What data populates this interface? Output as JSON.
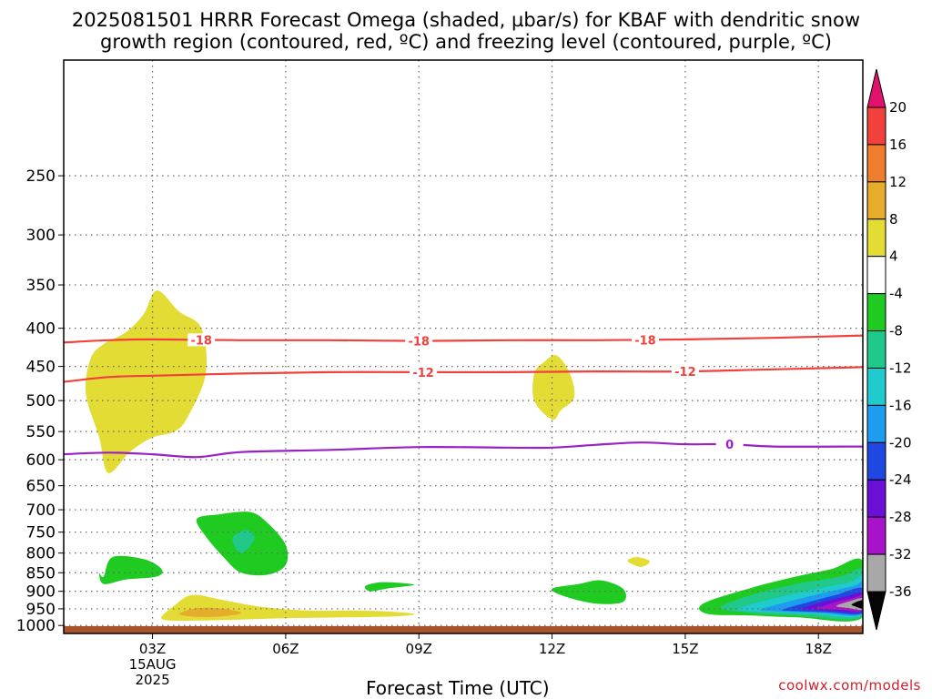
{
  "page": {
    "title_line1": "2025081501 HRRR Forecast Omega (shaded, µbar/s) for KBAF with dendritic snow",
    "title_line2": "growth region (contoured, red, ºC) and freezing level (contoured, purple, ºC)",
    "credit": "coolwx.com/models"
  },
  "chart_data": {
    "type": "time-height contour",
    "xlabel": "Forecast Time (UTC)",
    "ylabel": "",
    "x_range": [
      1,
      19
    ],
    "y_range_hPa": [
      1025,
      175
    ],
    "y_scale": "log-pressure",
    "grid": true,
    "x_ticks": [
      {
        "value": 3,
        "label": "03Z",
        "sub1": "15AUG",
        "sub2": "2025"
      },
      {
        "value": 6,
        "label": "06Z"
      },
      {
        "value": 9,
        "label": "09Z"
      },
      {
        "value": 12,
        "label": "12Z"
      },
      {
        "value": 15,
        "label": "15Z"
      },
      {
        "value": 18,
        "label": "18Z"
      }
    ],
    "y_ticks": [
      250,
      300,
      350,
      400,
      450,
      500,
      550,
      600,
      650,
      700,
      750,
      800,
      850,
      900,
      950,
      1000
    ],
    "contours": [
      {
        "label": "-18",
        "color": "#f2403c",
        "x": [
          1,
          2,
          3,
          5,
          7,
          9,
          11,
          13,
          15,
          17,
          19
        ],
        "p": [
          418,
          415,
          414,
          415,
          415,
          416,
          415,
          415,
          414,
          412,
          409
        ],
        "label_at": [
          4.1,
          9,
          14.1
        ]
      },
      {
        "label": "-12",
        "color": "#f2403c",
        "x": [
          1,
          2,
          3,
          5,
          7,
          9,
          11,
          13,
          15,
          17,
          19
        ],
        "p": [
          472,
          465,
          463,
          460,
          458,
          458,
          458,
          457,
          457,
          454,
          451
        ],
        "label_at": [
          9.1,
          15
        ]
      },
      {
        "label": "0",
        "color": "#9a20c8",
        "x": [
          1,
          2,
          3,
          4,
          5,
          7,
          9,
          11,
          12,
          13,
          14,
          15,
          16,
          17,
          19
        ],
        "p": [
          590,
          587,
          590,
          595,
          586,
          582,
          577,
          578,
          578,
          573,
          569,
          572,
          572,
          576,
          576
        ],
        "label_at": [
          16
        ]
      }
    ],
    "shaded_regions": [
      {
        "level": "4",
        "color": "#e3dc35",
        "x": [
          2.0,
          1.8,
          1.5,
          1.6,
          1.9,
          2.4,
          2.8,
          3.1,
          3.6,
          4.1,
          4.2,
          3.8,
          3.5,
          3.0,
          2.5,
          2.0
        ],
        "p": [
          625,
          560,
          490,
          440,
          420,
          405,
          383,
          356,
          380,
          400,
          460,
          525,
          550,
          560,
          585,
          625
        ]
      },
      {
        "level": "4",
        "color": "#e3dc35",
        "x": [
          12.0,
          11.6,
          11.6,
          11.8,
          12.1,
          12.4,
          12.5,
          12.2,
          12.0
        ],
        "p": [
          530,
          500,
          460,
          445,
          435,
          460,
          495,
          515,
          530
        ]
      },
      {
        "level": "4",
        "color": "#e3dc35",
        "x": [
          13.7,
          13.9,
          14.2,
          14.0,
          13.7
        ],
        "p": [
          820,
          810,
          820,
          835,
          820
        ]
      },
      {
        "level": "4",
        "color": "#e3dc35",
        "x": [
          3.2,
          3.5,
          3.9,
          4.6,
          5.5,
          6.5,
          7.5,
          8.3,
          8.9,
          8.5,
          7.5,
          6.0,
          5.0,
          4.0,
          3.4,
          3.2
        ],
        "p": [
          975,
          940,
          910,
          925,
          945,
          955,
          955,
          958,
          965,
          972,
          975,
          978,
          982,
          985,
          985,
          975
        ]
      },
      {
        "level": "8",
        "color": "#e6ac2c",
        "x": [
          3.6,
          4.0,
          4.6,
          5.0,
          4.6,
          4.0,
          3.6
        ],
        "p": [
          965,
          948,
          950,
          962,
          972,
          974,
          965
        ]
      },
      {
        "level": "-4",
        "color": "#1fcb20",
        "x": [
          1.9,
          2.1,
          2.8,
          3.2,
          3.1,
          2.4,
          1.9,
          1.8,
          1.9
        ],
        "p": [
          860,
          810,
          815,
          840,
          860,
          868,
          880,
          850,
          860
        ]
      },
      {
        "level": "-4",
        "color": "#1fcb20",
        "x": [
          4.0,
          4.5,
          5.2,
          5.6,
          6.0,
          6.0,
          5.6,
          5.0,
          4.6,
          4.2,
          4.0
        ],
        "p": [
          720,
          710,
          705,
          730,
          780,
          830,
          855,
          850,
          810,
          760,
          720
        ]
      },
      {
        "level": "-4",
        "color": "#1fcb20",
        "x": [
          7.8,
          8.2,
          8.9,
          8.3,
          7.9,
          7.8
        ],
        "p": [
          885,
          875,
          882,
          892,
          900,
          885
        ]
      },
      {
        "level": "-4",
        "color": "#1fcb20",
        "x": [
          12.0,
          12.6,
          13.1,
          13.6,
          13.6,
          13.0,
          12.3,
          12.0
        ],
        "p": [
          893,
          880,
          870,
          893,
          930,
          935,
          915,
          893
        ]
      },
      {
        "level": "-4",
        "color": "#1fcb20",
        "x": [
          15.4,
          16.5,
          17.5,
          18.3,
          19.0,
          19.0,
          17.5,
          16.5,
          15.5,
          15.4
        ],
        "p": [
          935,
          890,
          860,
          840,
          820,
          975,
          975,
          970,
          965,
          935
        ]
      },
      {
        "level": "-8",
        "color": "#20c88a",
        "x": [
          4.8,
          5.1,
          5.3,
          5.0,
          4.8
        ],
        "p": [
          765,
          745,
          765,
          800,
          765
        ]
      },
      {
        "level": "-8",
        "color": "#20c88a",
        "x": [
          15.8,
          16.5,
          17.5,
          18.5,
          19.0,
          19.0,
          17.5,
          16.3,
          15.8
        ],
        "p": [
          945,
          910,
          880,
          860,
          845,
          972,
          970,
          960,
          945
        ]
      },
      {
        "level": "-12",
        "color": "#20cbcd",
        "x": [
          16.2,
          17.0,
          17.9,
          18.7,
          19.0,
          19.0,
          17.8,
          16.6,
          16.2
        ],
        "p": [
          950,
          920,
          895,
          875,
          865,
          968,
          965,
          958,
          950
        ]
      },
      {
        "level": "-16",
        "color": "#1e9cf0",
        "x": [
          16.7,
          17.3,
          18.1,
          18.8,
          19.0,
          19.0,
          18.0,
          17.0,
          16.7
        ],
        "p": [
          952,
          930,
          905,
          885,
          878,
          965,
          962,
          957,
          952
        ]
      },
      {
        "level": "-20",
        "color": "#1f48e3",
        "x": [
          17.2,
          17.8,
          18.4,
          19.0,
          19.0,
          18.2,
          17.4,
          17.2
        ],
        "p": [
          952,
          930,
          910,
          892,
          962,
          960,
          956,
          952
        ]
      },
      {
        "level": "-24",
        "color": "#6a10d6",
        "x": [
          17.6,
          18.1,
          18.6,
          19.0,
          19.0,
          18.3,
          17.8,
          17.6
        ],
        "p": [
          950,
          930,
          915,
          905,
          958,
          956,
          953,
          950
        ]
      },
      {
        "level": "-28",
        "color": "#a812c8",
        "x": [
          18.0,
          18.4,
          18.8,
          19.0,
          19.0,
          18.5,
          18.1,
          18.0
        ],
        "p": [
          947,
          930,
          918,
          912,
          955,
          953,
          950,
          947
        ]
      },
      {
        "level": "-32",
        "color": "#a8a8a8",
        "x": [
          18.4,
          18.7,
          19.0,
          19.0,
          18.7,
          18.4
        ],
        "p": [
          942,
          928,
          920,
          952,
          948,
          942
        ]
      },
      {
        "level": "-36",
        "color": "#050505",
        "x": [
          18.75,
          19.0,
          19.0,
          18.85,
          18.75
        ],
        "p": [
          937,
          925,
          948,
          944,
          937
        ]
      }
    ],
    "terrain": {
      "color": "#a9532b",
      "p_top": 1002
    },
    "colorbar": {
      "label_values": [
        "20",
        "16",
        "12",
        "8",
        "4",
        "-4",
        "-8",
        "-12",
        "-16",
        "-20",
        "-24",
        "-28",
        "-32",
        "-36"
      ],
      "bands": [
        {
          "color": "#e0126e"
        },
        {
          "color": "#f2403c"
        },
        {
          "color": "#ef7d2d"
        },
        {
          "color": "#e6ac2c"
        },
        {
          "color": "#e3dc35"
        },
        {
          "color": "#ffffff"
        },
        {
          "color": "#1fcb20"
        },
        {
          "color": "#20c88a"
        },
        {
          "color": "#20cbcd"
        },
        {
          "color": "#1e9cf0"
        },
        {
          "color": "#1f48e3"
        },
        {
          "color": "#6a10d6"
        },
        {
          "color": "#a812c8"
        },
        {
          "color": "#a8a8a8"
        },
        {
          "color": "#050505"
        }
      ]
    }
  }
}
